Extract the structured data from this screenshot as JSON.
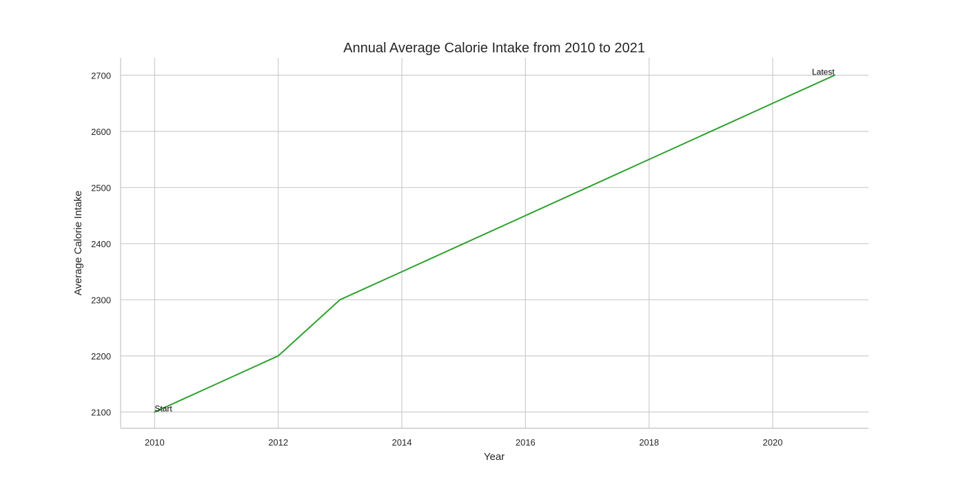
{
  "chart_data": {
    "type": "line",
    "title": "Annual Average Calorie Intake from 2010 to 2021",
    "xlabel": "Year",
    "ylabel": "Average Calorie Intake",
    "x": [
      2010,
      2011,
      2012,
      2013,
      2014,
      2015,
      2016,
      2017,
      2018,
      2019,
      2020,
      2021
    ],
    "series": [
      {
        "values": [
          2100,
          2150,
          2200,
          2300,
          2350,
          2400,
          2450,
          2500,
          2550,
          2600,
          2650,
          2700
        ],
        "color": "#2ca02c"
      }
    ],
    "xlim": [
      2009.45,
      2021.55
    ],
    "ylim": [
      2071,
      2731
    ],
    "xticks": [
      2010,
      2012,
      2014,
      2016,
      2018,
      2020
    ],
    "yticks": [
      2100,
      2200,
      2300,
      2400,
      2500,
      2600,
      2700
    ],
    "grid": true,
    "annotations": [
      {
        "text": "Start",
        "x": 2010,
        "y": 2100
      },
      {
        "text": "Latest",
        "x": 2021,
        "y": 2700
      }
    ]
  }
}
